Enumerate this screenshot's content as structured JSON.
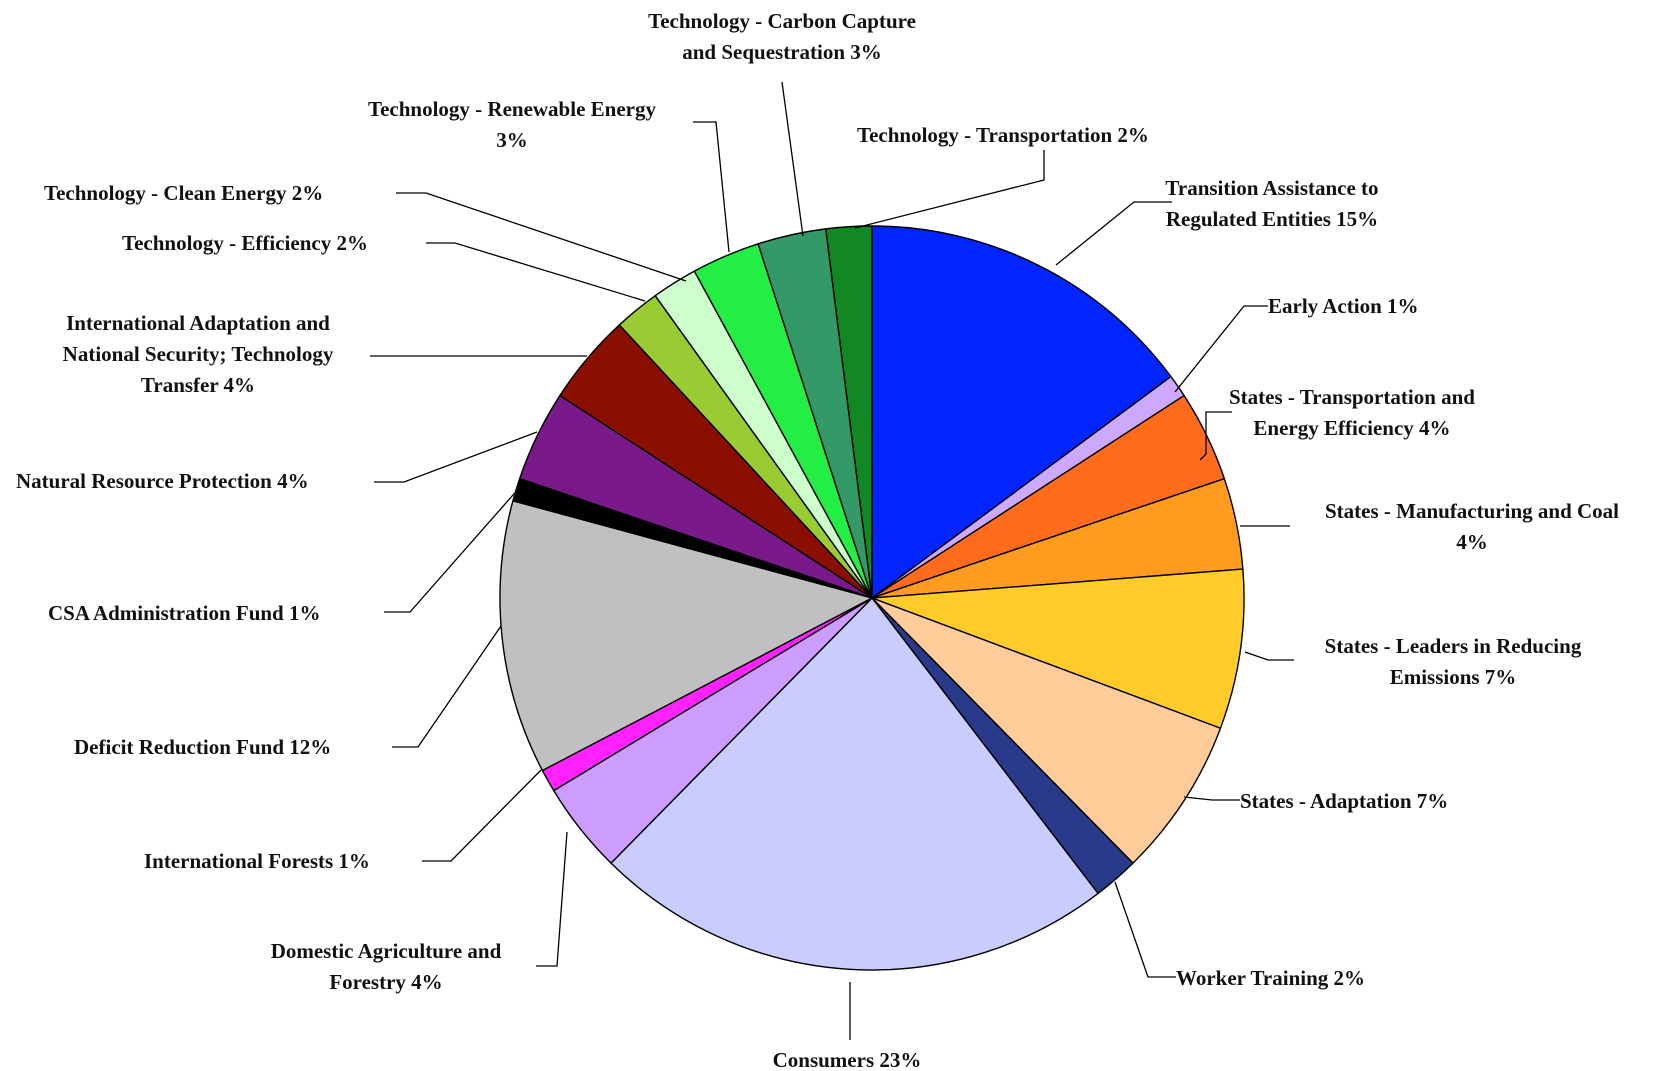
{
  "chart_data": {
    "type": "pie",
    "title": "",
    "start_angle_deg": 0,
    "direction": "clockwise",
    "slices": [
      {
        "label": "Transition Assistance to Regulated Entities 15%",
        "value": 15,
        "color": "#0025ff"
      },
      {
        "label": "Early Action  1%",
        "value": 1,
        "color": "#cda8ff"
      },
      {
        "label": "States - Transportation and Energy Efficiency 4%",
        "value": 4,
        "color": "#ff6c1c"
      },
      {
        "label": "States - Manufacturing and Coal 4%",
        "value": 4,
        "color": "#ff9c20"
      },
      {
        "label": "States - Leaders in Reducing Emissions 7%",
        "value": 7,
        "color": "#ffcc2a"
      },
      {
        "label": "States - Adaptation 7%",
        "value": 7,
        "color": "#ffcc9a"
      },
      {
        "label": "Worker Training 2%",
        "value": 2,
        "color": "#2a3a8a"
      },
      {
        "label": "Consumers 23%",
        "value": 23,
        "color": "#c8ccff"
      },
      {
        "label": "Domestic Agriculture and Forestry 4%",
        "value": 4,
        "color": "#cc9cff"
      },
      {
        "label": "International Forests 1%",
        "value": 1,
        "color": "#ff22ff"
      },
      {
        "label": "Deficit Reduction Fund 12%",
        "value": 12,
        "color": "#c0c0c0"
      },
      {
        "label": "CSA Administration Fund 1%",
        "value": 1,
        "color": "#000000"
      },
      {
        "label": "Natural Resource Protection 4%",
        "value": 4,
        "color": "#7a1a8a"
      },
      {
        "label": "International Adaptation and National Security; Technology Transfer 4%",
        "value": 4,
        "color": "#8a0f00"
      },
      {
        "label": "Technology - Efficiency 2%",
        "value": 2,
        "color": "#99cc33"
      },
      {
        "label": "Technology - Clean Energy  2%",
        "value": 2,
        "color": "#ccffcc"
      },
      {
        "label": "Technology - Renewable Energy 3%",
        "value": 3,
        "color": "#22ee44"
      },
      {
        "label": "Technology - Carbon Capture and Sequestration 3%",
        "value": 3,
        "color": "#339966"
      },
      {
        "label": "Technology - Transportation  2%",
        "value": 2,
        "color": "#118822"
      }
    ]
  }
}
